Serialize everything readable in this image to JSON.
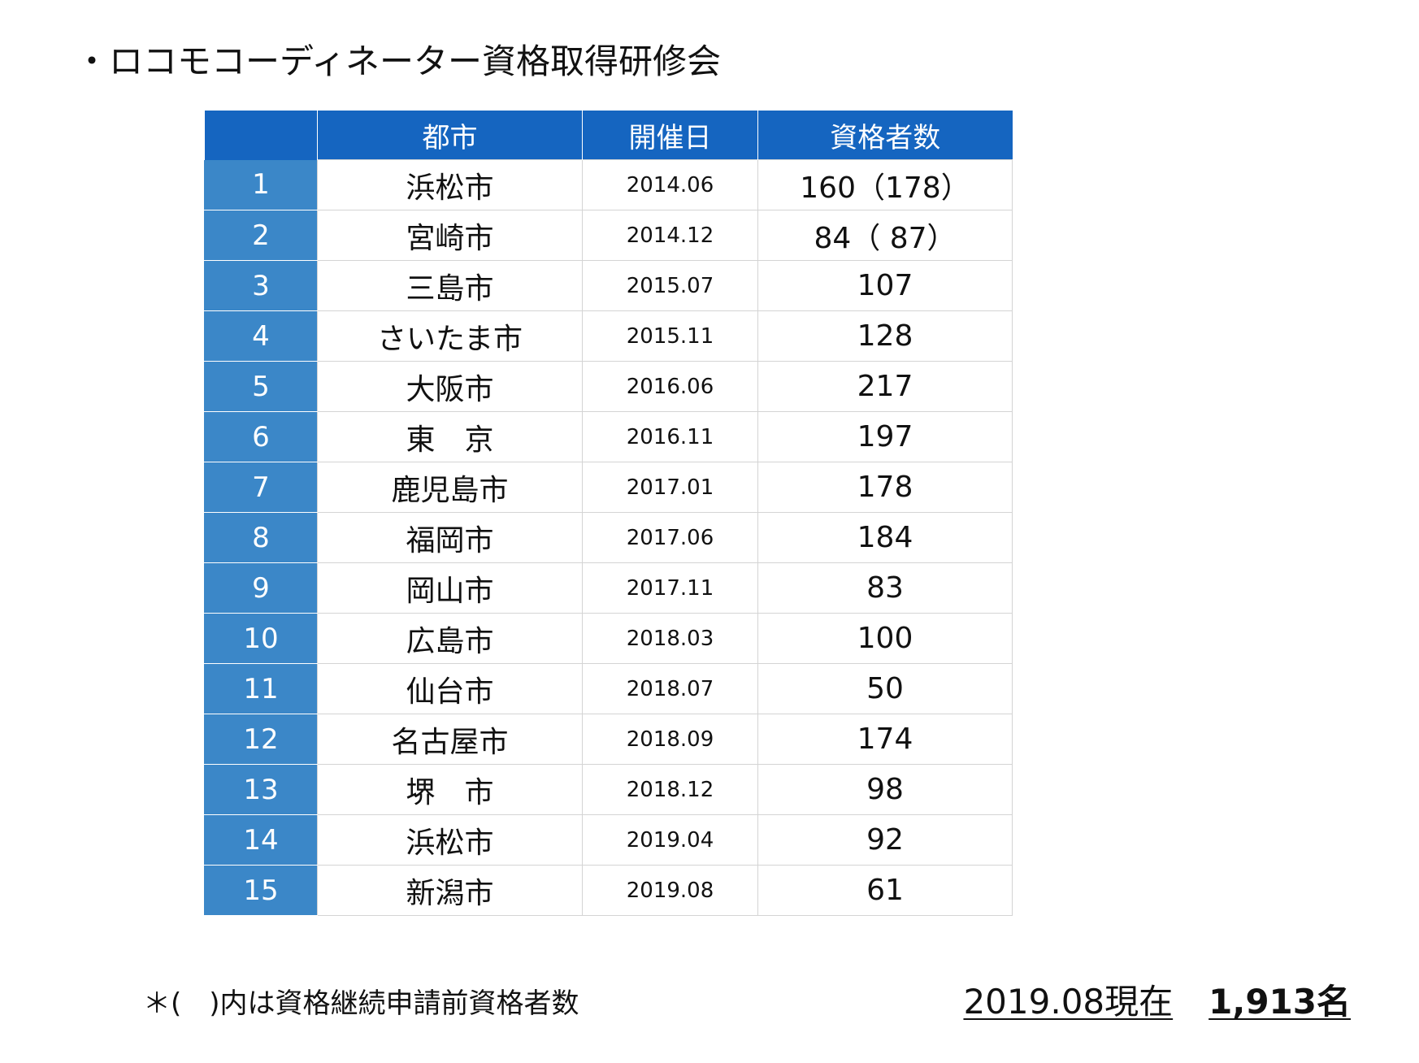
{
  "title": "・ロコモコーディネーター資格取得研修会",
  "table": {
    "headers": [
      "",
      "都市",
      "開催日",
      "資格者数"
    ],
    "rows": [
      {
        "no": "1",
        "city": "浜松市",
        "date": "2014.06",
        "count": "160（178）"
      },
      {
        "no": "2",
        "city": "宮崎市",
        "date": "2014.12",
        "count": "84（ 87）"
      },
      {
        "no": "3",
        "city": "三島市",
        "date": "2015.07",
        "count": "107"
      },
      {
        "no": "4",
        "city": "さいたま市",
        "date": "2015.11",
        "count": "128"
      },
      {
        "no": "5",
        "city": "大阪市",
        "date": "2016.06",
        "count": "217"
      },
      {
        "no": "6",
        "city": "東　京",
        "date": "2016.11",
        "count": "197"
      },
      {
        "no": "7",
        "city": "鹿児島市",
        "date": "2017.01",
        "count": "178"
      },
      {
        "no": "8",
        "city": "福岡市",
        "date": "2017.06",
        "count": "184"
      },
      {
        "no": "9",
        "city": "岡山市",
        "date": "2017.11",
        "count": "83"
      },
      {
        "no": "10",
        "city": "広島市",
        "date": "2018.03",
        "count": "100"
      },
      {
        "no": "11",
        "city": "仙台市",
        "date": "2018.07",
        "count": "50"
      },
      {
        "no": "12",
        "city": "名古屋市",
        "date": "2018.09",
        "count": "174"
      },
      {
        "no": "13",
        "city": "堺　市",
        "date": "2018.12",
        "count": "98"
      },
      {
        "no": "14",
        "city": "浜松市",
        "date": "2019.04",
        "count": "92"
      },
      {
        "no": "15",
        "city": "新潟市",
        "date": "2019.08",
        "count": "61"
      }
    ]
  },
  "footer": {
    "note": "＊(　)内は資格継続申請前資格者数",
    "as_of": "2019.08現在",
    "total": "1,913名"
  },
  "colors": {
    "header_bg": "#1565c0",
    "number_col_bg": "#3b87c8",
    "grid_line": "#d4d4d4"
  }
}
